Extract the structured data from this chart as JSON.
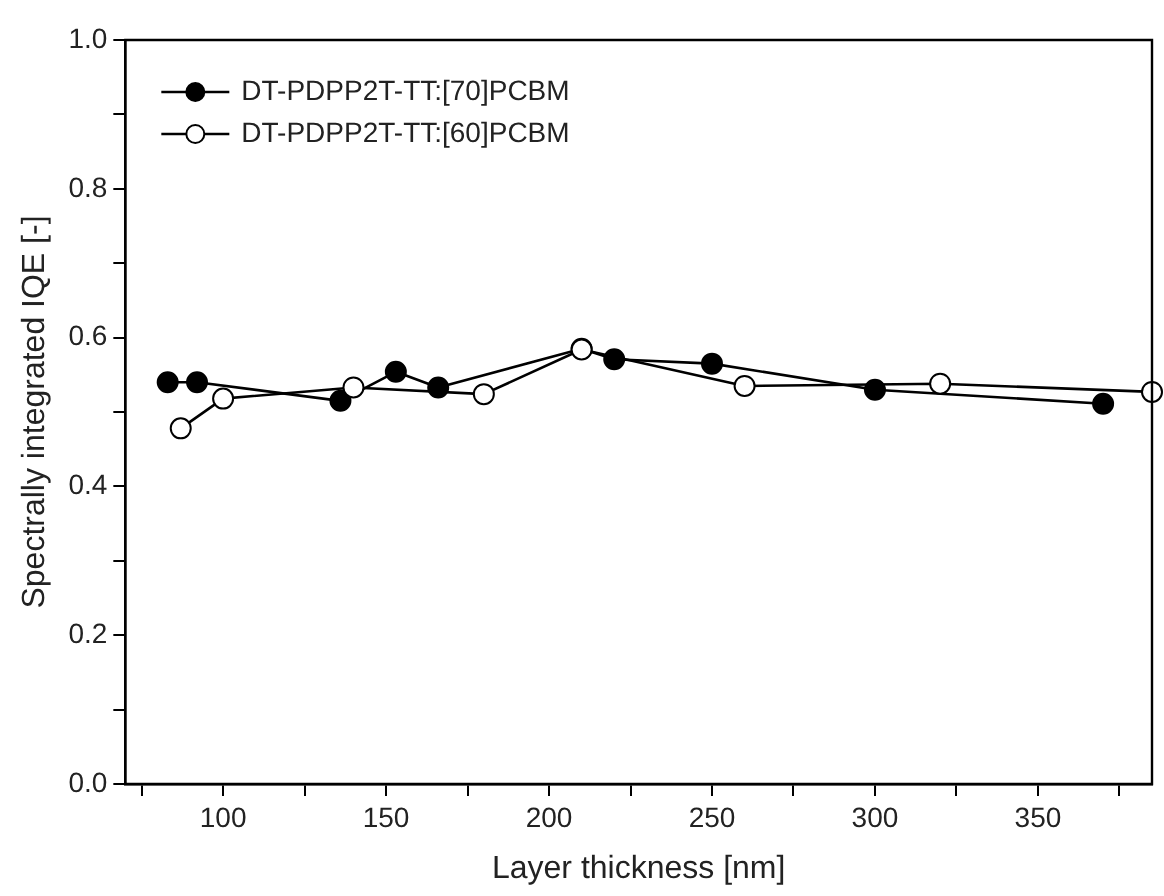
{
  "chart_data": {
    "type": "line",
    "xlabel": "Layer thickness [nm]",
    "ylabel": "Spectrally integrated IQE [-]",
    "xlim": [
      70,
      385
    ],
    "xticks": [
      {
        "value": 75,
        "label": null
      },
      100,
      {
        "value": 125,
        "label": null
      },
      150,
      {
        "value": 175,
        "label": null
      },
      200,
      {
        "value": 225,
        "label": null
      },
      250,
      {
        "value": 275,
        "label": null
      },
      300,
      {
        "value": 325,
        "label": null
      },
      350,
      {
        "value": 375,
        "label": null
      }
    ],
    "ylim": [
      0,
      1
    ],
    "yticks": [
      {
        "value": 0,
        "label": "0.0"
      },
      {
        "value": 0.1,
        "label": null
      },
      0.2,
      {
        "value": 0.3,
        "label": null
      },
      0.4,
      {
        "value": 0.5,
        "label": null
      },
      0.6,
      {
        "value": 0.7,
        "label": null
      },
      0.8,
      {
        "value": 0.9,
        "label": null
      },
      {
        "value": 1,
        "label": "1.0"
      }
    ],
    "grid": false,
    "legend": "top left",
    "marker": "circle",
    "line_style": "solid",
    "series": [
      {
        "name": "DT-PDPP2T-TT:[70]PCBM",
        "color": "#000000",
        "x": [
          83,
          92,
          136,
          153,
          166,
          210,
          220,
          250,
          300,
          370
        ],
        "values": [
          0.54,
          0.54,
          0.515,
          0.554,
          0.533,
          0.585,
          0.571,
          0.565,
          0.53,
          0.511
        ]
      },
      {
        "name": "DT-PDPP2T-TT:[60]PCBM",
        "color": "#000000",
        "x": [
          87,
          100,
          140,
          180,
          210,
          260,
          320,
          385
        ],
        "values": [
          0.478,
          0.518,
          0.533,
          0.524,
          0.584,
          0.535,
          0.538,
          0.527
        ]
      }
    ]
  }
}
